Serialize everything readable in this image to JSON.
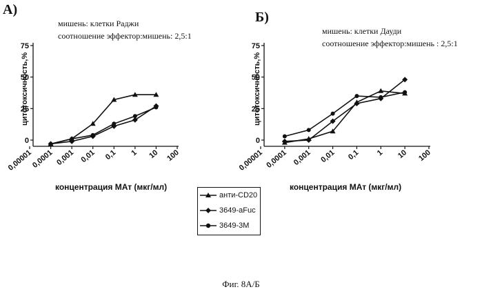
{
  "panels": [
    {
      "label": "А)",
      "target_line": "мишень: клетки Раджи",
      "ratio_line": "соотношение эффектор:мишень: 2,5:1"
    },
    {
      "label": "Б)",
      "target_line": "мишень: клетки Дауди",
      "ratio_line": "соотношение эффектор:мишень : 2,5:1"
    }
  ],
  "legend": [
    {
      "label": "анти-CD20",
      "marker": "triangle"
    },
    {
      "label": "3649-aFuc",
      "marker": "diamond"
    },
    {
      "label": "3649-3M",
      "marker": "circle"
    }
  ],
  "caption": "Фиг. 8А/Б",
  "chart_data": [
    {
      "type": "line",
      "xlabel": "концентрация МАт (мкг/мл)",
      "ylabel": "цитотоксичность,%",
      "x_scale": "log",
      "xlim": [
        1e-05,
        100
      ],
      "ylim": [
        0,
        75
      ],
      "yticks": [
        "0",
        "25",
        "50",
        "75"
      ],
      "xticks": [
        "0,00001",
        "0,0001",
        "0,001",
        "0,01",
        "0,1",
        "1",
        "10",
        "100"
      ],
      "x": [
        0.0001,
        0.001,
        0.01,
        0.1,
        1,
        10
      ],
      "series": [
        {
          "name": "анти-CD20",
          "values": [
            -3,
            1,
            13,
            32,
            36,
            36
          ]
        },
        {
          "name": "3649-aFuc",
          "values": [
            -3,
            -1,
            3,
            11,
            16,
            27
          ]
        },
        {
          "name": "3649-3M",
          "values": [
            -3,
            1,
            4,
            13,
            19,
            26
          ]
        }
      ]
    },
    {
      "type": "line",
      "xlabel": "концентрация МАт (мкг/мл)",
      "ylabel": "цитотоксичность,%",
      "x_scale": "log",
      "xlim": [
        1e-05,
        100
      ],
      "ylim": [
        0,
        75
      ],
      "yticks": [
        "0",
        "25",
        "50",
        "75"
      ],
      "xticks": [
        "0,00001",
        "0,0001",
        "0,001",
        "0,01",
        "0,1",
        "1",
        "10",
        "100"
      ],
      "x": [
        0.0001,
        0.001,
        0.01,
        0.1,
        1,
        10
      ],
      "series": [
        {
          "name": "анти-CD20",
          "values": [
            -2,
            1,
            7,
            30,
            39,
            37
          ]
        },
        {
          "name": "3649-aFuc",
          "values": [
            -1,
            0,
            15,
            29,
            33,
            48
          ]
        },
        {
          "name": "3649-3M",
          "values": [
            3,
            8,
            21,
            35,
            34,
            38
          ]
        }
      ]
    }
  ]
}
